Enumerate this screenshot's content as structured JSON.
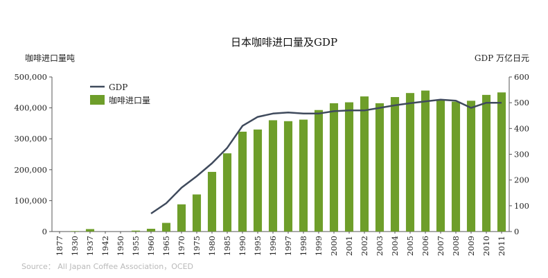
{
  "chart_data": {
    "type": "bar",
    "title": "日本咖啡进口量及GDP",
    "ylabel_left": "咖啡进口量吨",
    "ylabel_right": "GDP 万亿日元",
    "categories": [
      "1877",
      "1930",
      "1937",
      "1942",
      "1950",
      "1955",
      "1960",
      "1965",
      "1970",
      "1975",
      "1980",
      "1985",
      "1990",
      "1995",
      "1996",
      "1997",
      "1998",
      "1999",
      "2000",
      "2001",
      "2002",
      "2003",
      "2004",
      "2005",
      "2006",
      "2007",
      "2008",
      "2009",
      "2010",
      "2011"
    ],
    "series": [
      {
        "name": "咖啡进口量",
        "type": "bar",
        "axis": "left",
        "color": "#6e9e2a",
        "values": [
          0,
          1500,
          8000,
          0,
          0,
          3000,
          9000,
          28000,
          88000,
          120000,
          193000,
          253000,
          323000,
          330000,
          360000,
          357000,
          362000,
          393000,
          415000,
          418000,
          437000,
          415000,
          435000,
          448000,
          456000,
          425000,
          420000,
          423000,
          442000,
          450000
        ]
      },
      {
        "name": "GDP",
        "type": "line",
        "axis": "right",
        "color": "#3f4a5c",
        "values": [
          null,
          null,
          null,
          null,
          null,
          null,
          70,
          110,
          170,
          215,
          265,
          325,
          410,
          445,
          458,
          462,
          458,
          458,
          467,
          470,
          470,
          480,
          490,
          498,
          505,
          512,
          508,
          480,
          500,
          500
        ]
      }
    ],
    "ylim_left": [
      0,
      500000
    ],
    "ylim_right": [
      0,
      600
    ],
    "yticks_left": [
      "0",
      "100,000",
      "200,000",
      "300,000",
      "400,000",
      "500,000"
    ],
    "yticks_right": [
      "0",
      "100",
      "200",
      "300",
      "400",
      "500",
      "600"
    ],
    "legend": [
      "GDP",
      "咖啡进口量"
    ],
    "legend_position": "top-left",
    "grid": false
  },
  "source": "Source：  All Japan Coffee Association，OCED"
}
